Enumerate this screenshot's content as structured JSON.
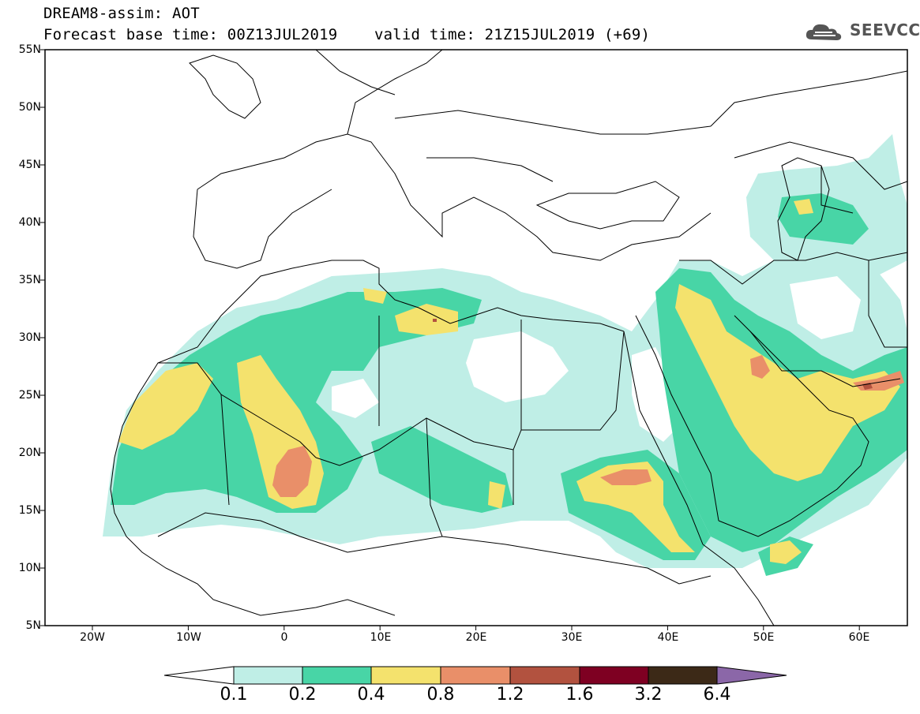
{
  "header": {
    "line1": "DREAM8-assim: AOT",
    "line2": "Forecast base time: 00Z13JUL2019    valid time: 21Z15JUL2019 (+69)"
  },
  "logo": {
    "text": "SEEVCCC"
  },
  "map": {
    "lat_labels": [
      "55N",
      "50N",
      "45N",
      "40N",
      "35N",
      "30N",
      "25N",
      "20N",
      "15N",
      "10N",
      "5N"
    ],
    "lon_labels": [
      "20W",
      "10W",
      "0",
      "10E",
      "20E",
      "30E",
      "40E",
      "50E",
      "60E"
    ],
    "colors": {
      "c01": "#bfeee6",
      "c02": "#48d5a6",
      "c04": "#f4e26d",
      "c08": "#e98f69",
      "c12": "#b2523f",
      "c16": "#7e0022",
      "c32": "#3c2917",
      "c64": "#8b67a8",
      "land": "#ffffff",
      "border": "#000000"
    }
  },
  "colorbar": {
    "labels": [
      "0.1",
      "0.2",
      "0.4",
      "0.8",
      "1.2",
      "1.6",
      "3.2",
      "6.4"
    ]
  }
}
